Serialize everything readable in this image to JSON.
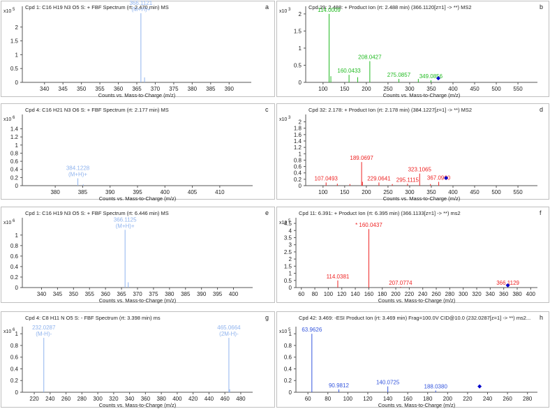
{
  "colors": {
    "axis": "#555555",
    "frame": "#bfbfbf",
    "text": "#222222",
    "green": "#22bb22",
    "red": "#ee2222",
    "blue": "#3355dd",
    "lightblue": "#8fb3ee",
    "marker": "#0000cc"
  },
  "chart_data": [
    {
      "panel": "a",
      "type": "bar",
      "title": "Cpd 1: C16 H19 N3 O5 S: + FBF Spectrum (rt: 2.470 min) MS",
      "exponent": "5",
      "xlabel": "Counts vs. Mass-to-Charge (m/z)",
      "xlim": [
        334,
        396
      ],
      "ylim": [
        0,
        2.6
      ],
      "xticks": [
        340,
        345,
        350,
        355,
        360,
        365,
        370,
        375,
        380,
        385,
        390
      ],
      "yticks": [
        0,
        0.5,
        1,
        1.5,
        2
      ],
      "ytick_labels": [
        "0",
        "0.5",
        "1",
        "1.5",
        "2"
      ],
      "color": "lightblue",
      "peaks": [
        {
          "x": 366.1121,
          "y": 2.5,
          "label": "366.1121",
          "label2": "(M+H)+"
        },
        {
          "x": 367.1,
          "y": 0.18
        }
      ],
      "marker": null
    },
    {
      "panel": "b",
      "type": "bar",
      "title": "Cpd 29: 2.488: + Product Ion (rt: 2.488 min) (366.1120[z=1] -> **) MS2",
      "exponent": "3",
      "xlabel": "Counts vs. Mass-to-Charge (m/z)",
      "xlim": [
        60,
        595
      ],
      "ylim": [
        0,
        2.1
      ],
      "xticks": [
        100,
        150,
        200,
        250,
        300,
        350,
        400,
        450,
        500,
        550
      ],
      "yticks": [
        0,
        0.5,
        1,
        1.5,
        2
      ],
      "ytick_labels": [
        "0",
        "0.5",
        "1",
        "1.5",
        "2"
      ],
      "color": "green",
      "peaks": [
        {
          "x": 114.0009,
          "y": 2.0,
          "label": "114.0009"
        },
        {
          "x": 118,
          "y": 0.18
        },
        {
          "x": 160.0433,
          "y": 0.22,
          "label": "160.0433"
        },
        {
          "x": 180,
          "y": 0.15
        },
        {
          "x": 208.0427,
          "y": 0.62,
          "label": "208.0427"
        },
        {
          "x": 275.0857,
          "y": 0.1,
          "label": "275.0857"
        },
        {
          "x": 320,
          "y": 0.1
        },
        {
          "x": 349.0856,
          "y": 0.06,
          "label": "349.0856"
        }
      ],
      "marker": {
        "x": 366.112,
        "y": 0.12
      }
    },
    {
      "panel": "c",
      "type": "bar",
      "title": "Cpd 4: C16 H21 N3 O6 S: + FBF Spectrum (rt: 2.177 min) MS",
      "exponent": "6",
      "xlabel": "Counts vs. Mass-to-Charge (m/z)",
      "xlim": [
        374,
        416
      ],
      "ylim": [
        0,
        1.65
      ],
      "xticks": [
        380,
        385,
        390,
        395,
        400,
        405,
        410
      ],
      "yticks": [
        0,
        0.2,
        0.4,
        0.6,
        0.8,
        1,
        1.2,
        1.4
      ],
      "ytick_labels": [
        "0",
        "0.2",
        "0.4",
        "0.6",
        "0.8",
        "1",
        "1.2",
        "1.4"
      ],
      "color": "lightblue",
      "peaks": [
        {
          "x": 384.1228,
          "y": 0.18,
          "label": "384.1228",
          "label2": "(M+H)+"
        },
        {
          "x": 385.1,
          "y": 0.03
        }
      ],
      "marker": null
    },
    {
      "panel": "d",
      "type": "bar",
      "title": "Cpd 32: 2.178: + Product Ion (rt: 2.178 min) (384.1227[z=1] -> **) MS2",
      "exponent": "3",
      "xlabel": "Counts vs. Mass-to-Charge (m/z)",
      "xlim": [
        60,
        595
      ],
      "ylim": [
        0,
        2.1
      ],
      "xticks": [
        100,
        150,
        200,
        250,
        300,
        350,
        400,
        450,
        500,
        550
      ],
      "yticks": [
        0,
        0.2,
        0.4,
        0.6,
        0.8,
        1,
        1.2,
        1.4,
        1.6,
        1.8,
        2
      ],
      "ytick_labels": [
        "0",
        "0.2",
        "0.4",
        "0.6",
        "0.8",
        "1",
        "1.2",
        "1.4",
        "1.6",
        "1.8",
        "2"
      ],
      "color": "red",
      "peaks": [
        {
          "x": 107.0493,
          "y": 0.1,
          "label": "107.0493"
        },
        {
          "x": 133,
          "y": 0.06
        },
        {
          "x": 162,
          "y": 0.05
        },
        {
          "x": 189.0697,
          "y": 0.74,
          "label": "189.0697"
        },
        {
          "x": 191,
          "y": 0.12
        },
        {
          "x": 229.0641,
          "y": 0.1,
          "label": "229.0641"
        },
        {
          "x": 260,
          "y": 0.05
        },
        {
          "x": 295.1115,
          "y": 0.06,
          "label": "295.1115"
        },
        {
          "x": 323.1065,
          "y": 0.38,
          "label": "323.1065"
        },
        {
          "x": 348,
          "y": 0.05
        },
        {
          "x": 367.096,
          "y": 0.12,
          "label": "367.0960"
        }
      ],
      "marker": {
        "x": 384.1227,
        "y": 0.24
      }
    },
    {
      "panel": "e",
      "type": "bar",
      "title": "Cpd 1: C16 H19 N3 O5 S: + FBF Spectrum (rt: 6.446 min) MS",
      "exponent": "6",
      "xlabel": "Counts vs. Mass-to-Charge (m/z)",
      "xlim": [
        334,
        406
      ],
      "ylim": [
        0,
        1.25
      ],
      "xticks": [
        340,
        345,
        350,
        355,
        360,
        365,
        370,
        375,
        380,
        385,
        390,
        395,
        400
      ],
      "yticks": [
        0,
        0.2,
        0.4,
        0.6,
        0.8,
        1
      ],
      "ytick_labels": [
        "0",
        "0.2",
        "0.4",
        "0.6",
        "0.8",
        "1"
      ],
      "color": "lightblue",
      "peaks": [
        {
          "x": 366.1125,
          "y": 1.1,
          "label": "366.1125",
          "label2": "(M+H)+"
        },
        {
          "x": 367.1,
          "y": 0.1
        }
      ],
      "marker": null
    },
    {
      "panel": "f",
      "type": "bar",
      "title": "Cpd 11: 6.391: + Product Ion (rt: 6.395 min) (366.1133[z=1] -> **) ms2",
      "exponent": "5",
      "xlabel": "Counts vs. Mass-to-Charge (m/z)",
      "xlim": [
        52,
        410
      ],
      "ylim": [
        0,
        4.6
      ],
      "xticks": [
        60,
        80,
        100,
        120,
        140,
        160,
        180,
        200,
        220,
        240,
        260,
        280,
        300,
        320,
        340,
        360,
        380,
        400
      ],
      "yticks": [
        0,
        0.5,
        1,
        1.5,
        2,
        2.5,
        3,
        3.5,
        4,
        4.5
      ],
      "ytick_labels": [
        "0",
        "0.5",
        "1",
        "1.5",
        "2",
        "2.5",
        "3",
        "3.5",
        "4",
        "4.5"
      ],
      "color": "red",
      "peaks": [
        {
          "x": 114.0381,
          "y": 0.5,
          "label": "114.0381"
        },
        {
          "x": 160.0437,
          "y": 4.1,
          "label": "* 160.0437"
        },
        {
          "x": 207.0774,
          "y": 0.05,
          "label": "207.0774"
        },
        {
          "x": 366.1129,
          "y": 0.05,
          "label": "366.1129"
        }
      ],
      "marker": {
        "x": 366.1129,
        "y": 0.15
      }
    },
    {
      "panel": "g",
      "type": "bar",
      "title": "Cpd 4: C8 H11 N O5 S: - FBF Spectrum (rt: 3.398 min) ms",
      "exponent": "6",
      "xlabel": "Counts vs. Mass-to-Charge (m/z)",
      "xlim": [
        205,
        495
      ],
      "ylim": [
        0,
        1.05
      ],
      "xticks": [
        220,
        240,
        260,
        280,
        300,
        320,
        340,
        360,
        380,
        400,
        420,
        440,
        460,
        480
      ],
      "yticks": [
        0,
        0.2,
        0.4,
        0.6,
        0.8,
        1
      ],
      "ytick_labels": [
        "0",
        "0.2",
        "0.4",
        "0.6",
        "0.8",
        "1"
      ],
      "color": "lightblue",
      "peaks": [
        {
          "x": 232.0287,
          "y": 0.93,
          "label": "232.0287",
          "label2": "(M-H)-"
        },
        {
          "x": 465.0664,
          "y": 0.93,
          "label": "465.0664",
          "label2": "(2M-H)-"
        },
        {
          "x": 466.07,
          "y": 0.05
        }
      ],
      "marker": null
    },
    {
      "panel": "h",
      "type": "bar",
      "title": "Cpd 42: 3.469: -ESI Product Ion (rt: 3.469 min) Frag=100.0V CID@10.0 (232.0287[z=1] -> **) ms2...",
      "exponent": "5",
      "xlabel": "Counts vs. Mass-to-Charge (m/z)",
      "xlim": [
        48,
        290
      ],
      "ylim": [
        0,
        1.05
      ],
      "xticks": [
        60,
        80,
        100,
        120,
        140,
        160,
        180,
        200,
        220,
        240,
        260,
        280
      ],
      "yticks": [
        0,
        0.2,
        0.4,
        0.6,
        0.8,
        1
      ],
      "ytick_labels": [
        "0",
        "0.2",
        "0.4",
        "0.6",
        "0.8",
        "1"
      ],
      "color": "blue",
      "peaks": [
        {
          "x": 63.9626,
          "y": 1.0,
          "label": "63.9626"
        },
        {
          "x": 90.9812,
          "y": 0.05,
          "label": "90.9812"
        },
        {
          "x": 140.0725,
          "y": 0.1,
          "label": "140.0725"
        },
        {
          "x": 188.038,
          "y": 0.03,
          "label": "188.0380"
        }
      ],
      "marker": {
        "x": 232.0287,
        "y": 0.1
      }
    }
  ]
}
